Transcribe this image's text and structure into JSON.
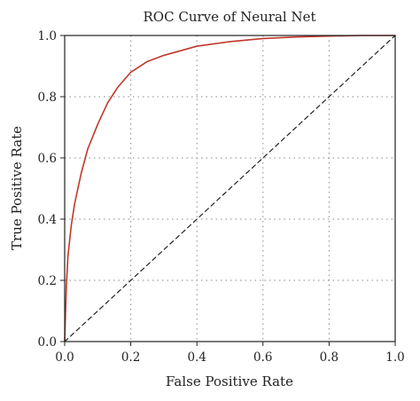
{
  "chart_data": {
    "type": "line",
    "title": "ROC Curve of Neural Net",
    "xlabel": "False Positive Rate",
    "ylabel": "True Positive Rate",
    "xlim": [
      0.0,
      1.0
    ],
    "ylim": [
      0.0,
      1.0
    ],
    "xticks": [
      "0.0",
      "0.2",
      "0.4",
      "0.6",
      "0.8",
      "1.0"
    ],
    "yticks": [
      "0.0",
      "0.2",
      "0.4",
      "0.6",
      "0.8",
      "1.0"
    ],
    "grid": true,
    "grid_style": "dotted",
    "legend": "none",
    "series": [
      {
        "color": "#c0392b",
        "style": "solid",
        "x": [
          0.0,
          0.005,
          0.01,
          0.02,
          0.03,
          0.05,
          0.07,
          0.1,
          0.13,
          0.16,
          0.2,
          0.25,
          0.3,
          0.4,
          0.5,
          0.6,
          0.7,
          0.8,
          0.9,
          1.0
        ],
        "y": [
          0.0,
          0.18,
          0.28,
          0.38,
          0.45,
          0.55,
          0.63,
          0.71,
          0.78,
          0.83,
          0.88,
          0.915,
          0.935,
          0.965,
          0.98,
          0.99,
          0.995,
          0.998,
          1.0,
          1.0
        ]
      },
      {
        "color": "#222222",
        "style": "dashed",
        "x": [
          0.0,
          1.0
        ],
        "y": [
          0.0,
          1.0
        ]
      }
    ]
  }
}
